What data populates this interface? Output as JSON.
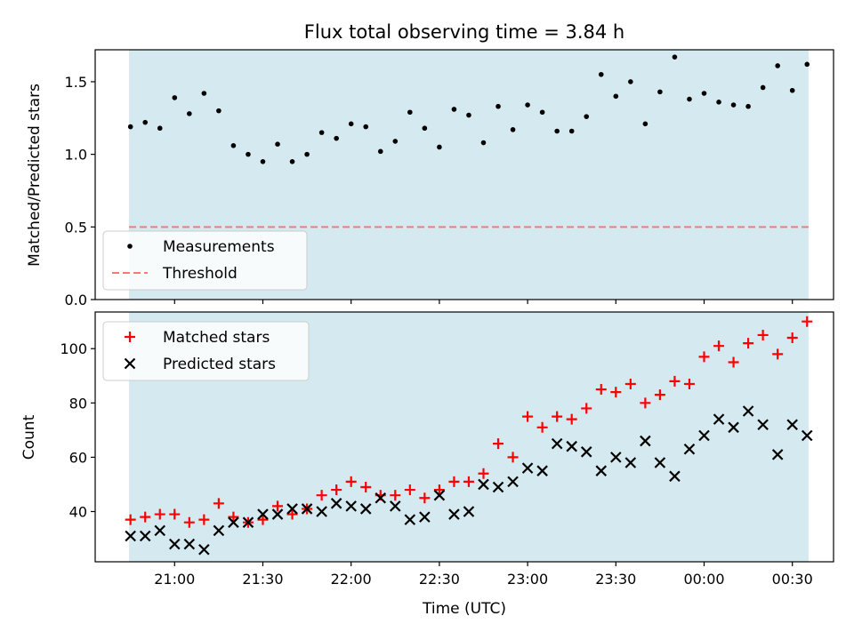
{
  "figure_title": "Flux total observing time = 3.84 h",
  "colors": {
    "background_band": "#d4eaf0",
    "threshold": "#f47a7a",
    "measurement": "#000000",
    "matched": "#ff0000",
    "predicted": "#000000"
  },
  "x_axis": {
    "label": "Time (UTC)",
    "unit": "minutes since 20:00",
    "range": [
      33,
      284
    ],
    "ticks": [
      {
        "value": 60,
        "label": "21:00"
      },
      {
        "value": 90,
        "label": "21:30"
      },
      {
        "value": 120,
        "label": "22:00"
      },
      {
        "value": 150,
        "label": "22:30"
      },
      {
        "value": 180,
        "label": "23:00"
      },
      {
        "value": 210,
        "label": "23:30"
      },
      {
        "value": 240,
        "label": "00:00"
      },
      {
        "value": 270,
        "label": "00:30"
      }
    ]
  },
  "chart_data": [
    {
      "type": "scatter",
      "title": "Flux total observing time = 3.84 h",
      "xlabel": "Time (UTC)",
      "ylabel": "Matched/Predicted stars",
      "ylim": [
        0,
        1.72
      ],
      "yticks": [
        {
          "value": 0.0,
          "label": "0.0"
        },
        {
          "value": 0.5,
          "label": "0.5"
        },
        {
          "value": 1.0,
          "label": "1.0"
        },
        {
          "value": 1.5,
          "label": "1.5"
        }
      ],
      "observing_window": [
        44.5,
        275.5
      ],
      "legend_position": "lower-left",
      "threshold": {
        "name": "Threshold",
        "value": 0.5,
        "style": "dashed"
      },
      "series": [
        {
          "name": "Measurements",
          "marker": "dot",
          "x": [
            45,
            50,
            55,
            60,
            65,
            70,
            75,
            80,
            85,
            90,
            95,
            100,
            105,
            110,
            115,
            120,
            125,
            130,
            135,
            140,
            145,
            150,
            155,
            160,
            165,
            170,
            175,
            180,
            185,
            190,
            195,
            200,
            205,
            210,
            215,
            220,
            225,
            230,
            235,
            240,
            245,
            250,
            255,
            260,
            265,
            270,
            275
          ],
          "values": [
            1.19,
            1.22,
            1.18,
            1.39,
            1.28,
            1.42,
            1.3,
            1.06,
            1.0,
            0.95,
            1.07,
            0.95,
            1.0,
            1.15,
            1.11,
            1.21,
            1.19,
            1.02,
            1.09,
            1.29,
            1.18,
            1.05,
            1.31,
            1.27,
            1.08,
            1.33,
            1.17,
            1.34,
            1.29,
            1.16,
            1.16,
            1.26,
            1.55,
            1.4,
            1.5,
            1.21,
            1.43,
            1.67,
            1.38,
            1.42,
            1.36,
            1.34,
            1.33,
            1.46,
            1.61,
            1.44,
            1.62
          ]
        }
      ]
    },
    {
      "type": "scatter",
      "xlabel": "Time (UTC)",
      "ylabel": "Count",
      "ylim": [
        21.5,
        113.5
      ],
      "yticks": [
        {
          "value": 40,
          "label": "40"
        },
        {
          "value": 60,
          "label": "60"
        },
        {
          "value": 80,
          "label": "80"
        },
        {
          "value": 100,
          "label": "100"
        }
      ],
      "observing_window": [
        44.5,
        275.5
      ],
      "legend_position": "upper-left",
      "series": [
        {
          "name": "Matched stars",
          "marker": "plus",
          "x": [
            45,
            50,
            55,
            60,
            65,
            70,
            75,
            80,
            85,
            90,
            95,
            100,
            105,
            110,
            115,
            120,
            125,
            130,
            135,
            140,
            145,
            150,
            155,
            160,
            165,
            170,
            175,
            180,
            185,
            190,
            195,
            200,
            205,
            210,
            215,
            220,
            225,
            230,
            235,
            240,
            245,
            250,
            255,
            260,
            265,
            270,
            275
          ],
          "values": [
            37,
            38,
            39,
            39,
            36,
            37,
            43,
            38,
            36,
            37,
            42,
            39,
            41,
            46,
            48,
            51,
            49,
            46,
            46,
            48,
            45,
            48,
            51,
            51,
            54,
            65,
            60,
            75,
            71,
            75,
            74,
            78,
            85,
            84,
            87,
            80,
            83,
            88,
            87,
            97,
            101,
            95,
            102,
            105,
            98,
            104,
            110
          ]
        },
        {
          "name": "Predicted stars",
          "marker": "x",
          "x": [
            45,
            50,
            55,
            60,
            65,
            70,
            75,
            80,
            85,
            90,
            95,
            100,
            105,
            110,
            115,
            120,
            125,
            130,
            135,
            140,
            145,
            150,
            155,
            160,
            165,
            170,
            175,
            180,
            185,
            190,
            195,
            200,
            205,
            210,
            215,
            220,
            225,
            230,
            235,
            240,
            245,
            250,
            255,
            260,
            265,
            270,
            275
          ],
          "values": [
            31,
            31,
            33,
            28,
            28,
            26,
            33,
            36,
            36,
            39,
            39,
            41,
            41,
            40,
            43,
            42,
            41,
            45,
            42,
            37,
            38,
            46,
            39,
            40,
            50,
            49,
            51,
            56,
            55,
            65,
            64,
            62,
            55,
            60,
            58,
            66,
            58,
            53,
            63,
            68,
            74,
            71,
            77,
            72,
            61,
            72,
            68
          ]
        }
      ]
    }
  ]
}
